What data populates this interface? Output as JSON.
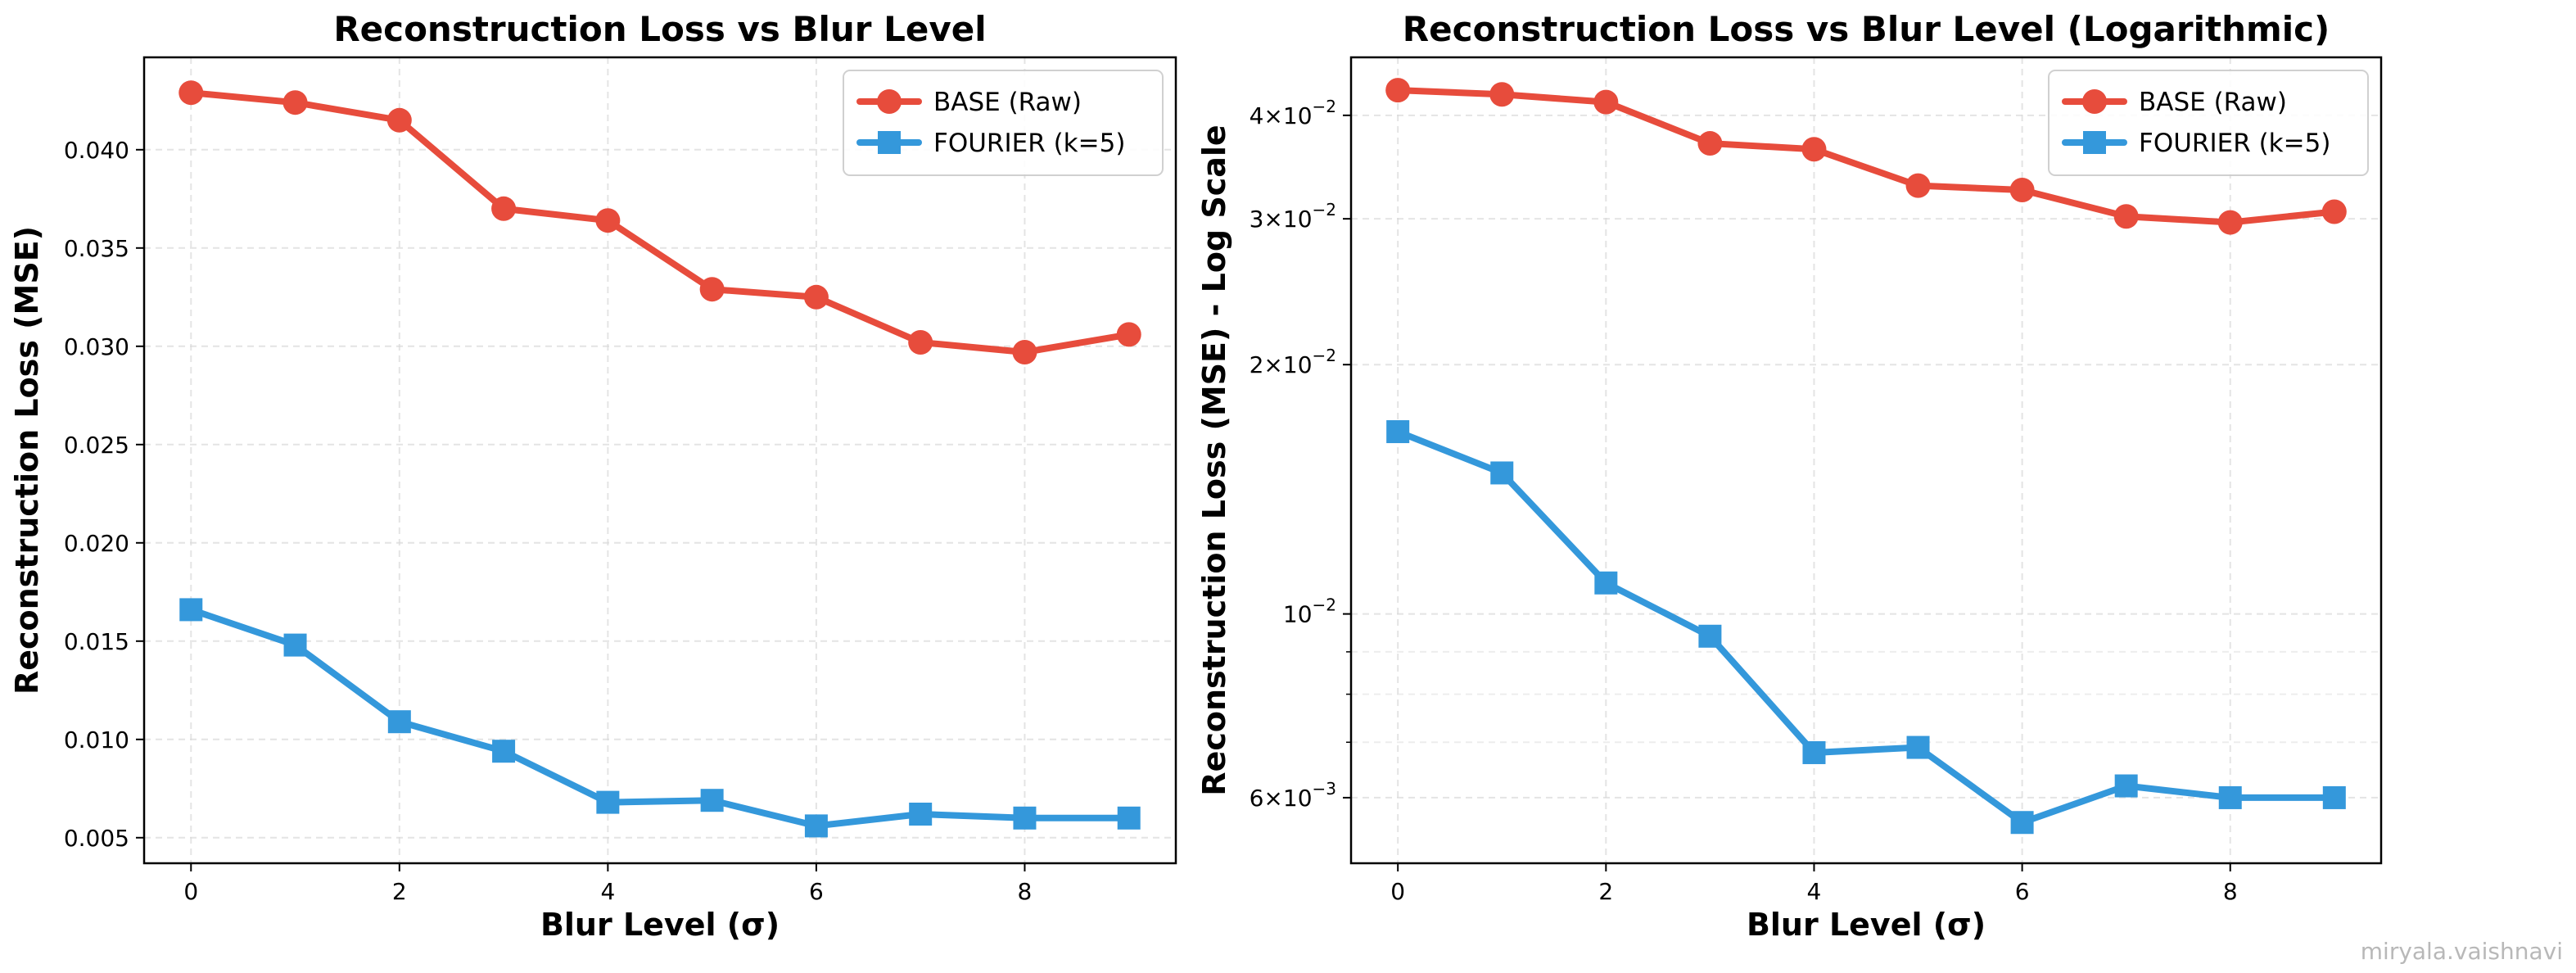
{
  "chart_data": [
    {
      "type": "line",
      "title": "Reconstruction Loss vs Blur Level",
      "xlabel": "Blur Level (σ)",
      "ylabel": "Reconstruction Loss (MSE)",
      "yscale": "linear",
      "xlim": [
        -0.45,
        9.45
      ],
      "ylim": [
        0.0037,
        0.0447
      ],
      "xticks": [
        0,
        2,
        4,
        6,
        8
      ],
      "xtick_labels": [
        "0",
        "2",
        "4",
        "6",
        "8"
      ],
      "yticks": [
        0.005,
        0.01,
        0.015,
        0.02,
        0.025,
        0.03,
        0.035,
        0.04
      ],
      "ytick_labels": [
        "0.005",
        "0.010",
        "0.015",
        "0.020",
        "0.025",
        "0.030",
        "0.035",
        "0.040"
      ],
      "grid": true,
      "legend": "top-right",
      "x": [
        0,
        1,
        2,
        3,
        4,
        5,
        6,
        7,
        8,
        9
      ],
      "series": [
        {
          "name": "BASE (Raw)",
          "marker": "circle",
          "color": "#e74c3c",
          "values": [
            0.0429,
            0.0424,
            0.0415,
            0.037,
            0.0364,
            0.0329,
            0.0325,
            0.0302,
            0.0297,
            0.0306
          ]
        },
        {
          "name": "FOURIER (k=5)",
          "marker": "square",
          "color": "#3498db",
          "values": [
            0.0166,
            0.0148,
            0.0109,
            0.0094,
            0.0068,
            0.0069,
            0.0056,
            0.0062,
            0.006,
            0.006
          ]
        }
      ]
    },
    {
      "type": "line",
      "title": "Reconstruction Loss vs Blur Level (Logarithmic)",
      "xlabel": "Blur Level (σ)",
      "ylabel": "Reconstruction Loss (MSE) - Log Scale",
      "yscale": "log",
      "xlim": [
        -0.45,
        9.45
      ],
      "ylim": [
        0.005,
        0.047
      ],
      "xticks": [
        0,
        2,
        4,
        6,
        8
      ],
      "xtick_labels": [
        "0",
        "2",
        "4",
        "6",
        "8"
      ],
      "yticks": [
        0.006,
        0.01,
        0.02,
        0.03,
        0.04
      ],
      "ytick_labels": [
        {
          "base": "6",
          "exp": "−3"
        },
        {
          "base": "10",
          "exp": "−2"
        },
        {
          "base": "2",
          "exp": "−2"
        },
        {
          "base": "3",
          "exp": "−2"
        },
        {
          "base": "4",
          "exp": "−2"
        }
      ],
      "minor_yticks": [
        0.007,
        0.008,
        0.009
      ],
      "grid": true,
      "legend": "top-right",
      "x": [
        0,
        1,
        2,
        3,
        4,
        5,
        6,
        7,
        8,
        9
      ],
      "series": [
        {
          "name": "BASE (Raw)",
          "marker": "circle",
          "color": "#e74c3c",
          "values": [
            0.0429,
            0.0424,
            0.0415,
            0.037,
            0.0364,
            0.0329,
            0.0325,
            0.0302,
            0.0297,
            0.0306
          ]
        },
        {
          "name": "FOURIER (k=5)",
          "marker": "square",
          "color": "#3498db",
          "values": [
            0.0166,
            0.0148,
            0.0109,
            0.0094,
            0.0068,
            0.0069,
            0.0056,
            0.0062,
            0.006,
            0.006
          ]
        }
      ]
    }
  ],
  "watermark": "miryala.vaishnavi"
}
